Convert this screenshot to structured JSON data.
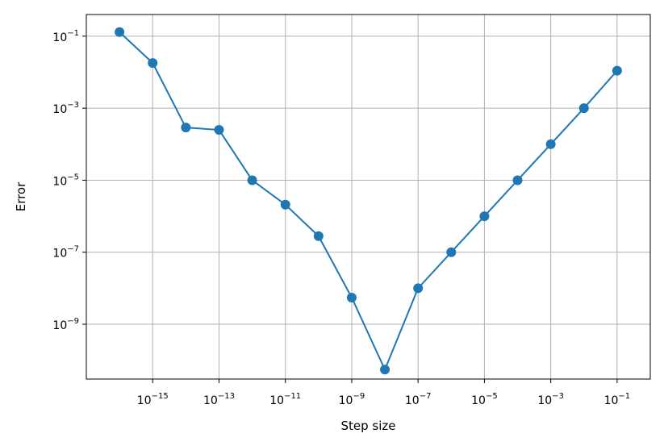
{
  "chart_data": {
    "type": "line",
    "xlabel": "Step size",
    "ylabel": "Error",
    "x_scale": "log",
    "y_scale": "log",
    "xlim": [
      1e-17,
      1
    ],
    "ylim": [
      3e-11,
      0.4
    ],
    "grid": true,
    "x_ticks": [
      {
        "value": 1e-15,
        "base": "10",
        "exp": "−15"
      },
      {
        "value": 1e-13,
        "base": "10",
        "exp": "−13"
      },
      {
        "value": 1e-11,
        "base": "10",
        "exp": "−11"
      },
      {
        "value": 1e-09,
        "base": "10",
        "exp": "−9"
      },
      {
        "value": 1e-07,
        "base": "10",
        "exp": "−7"
      },
      {
        "value": 1e-05,
        "base": "10",
        "exp": "−5"
      },
      {
        "value": 0.001,
        "base": "10",
        "exp": "−3"
      },
      {
        "value": 0.1,
        "base": "10",
        "exp": "−1"
      }
    ],
    "y_ticks": [
      {
        "value": 1e-09,
        "base": "10",
        "exp": "−9"
      },
      {
        "value": 1e-07,
        "base": "10",
        "exp": "−7"
      },
      {
        "value": 1e-05,
        "base": "10",
        "exp": "−5"
      },
      {
        "value": 0.001,
        "base": "10",
        "exp": "−3"
      },
      {
        "value": 0.1,
        "base": "10",
        "exp": "−1"
      }
    ],
    "series": [
      {
        "color": "#1f77b4",
        "x": [
          1e-16,
          1e-15,
          1e-14,
          1e-13,
          1e-12,
          1e-11,
          1e-10,
          1e-09,
          1e-08,
          1e-07,
          1e-06,
          1e-05,
          0.0001,
          0.001,
          0.01,
          0.1
        ],
        "y": [
          0.13,
          0.018,
          0.00029,
          0.00025,
          1e-05,
          2.1e-06,
          2.8e-07,
          5.5e-09,
          5.5e-11,
          1e-08,
          1e-07,
          1e-06,
          1e-05,
          0.0001,
          0.001,
          0.011
        ]
      }
    ]
  }
}
